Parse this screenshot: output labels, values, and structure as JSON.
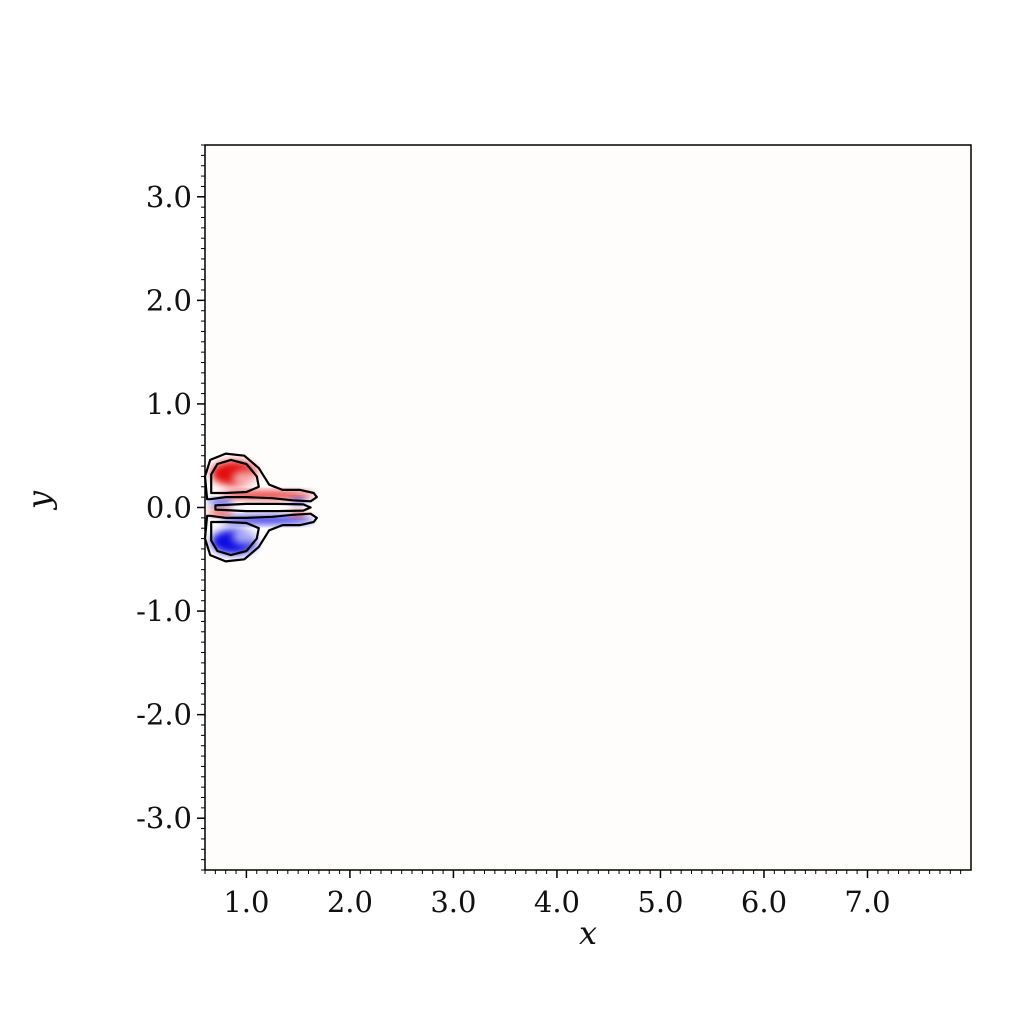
{
  "chart_data": {
    "type": "heatmap",
    "title": "",
    "xlabel": "x",
    "ylabel": "y",
    "xlim": [
      0.6,
      8.0
    ],
    "ylim": [
      -3.5,
      3.5
    ],
    "x_ticks": [
      1.0,
      2.0,
      3.0,
      4.0,
      5.0,
      6.0,
      7.0
    ],
    "x_tick_labels": [
      "1.0",
      "2.0",
      "3.0",
      "4.0",
      "5.0",
      "6.0",
      "7.0"
    ],
    "y_ticks": [
      3.0,
      2.0,
      1.0,
      0.0,
      -1.0,
      -2.0,
      -3.0
    ],
    "y_tick_labels": [
      "3.0",
      "2.0",
      "1.0",
      "0.0",
      "-1.0",
      "-2.0",
      "-3.0"
    ],
    "minor_ticks_per_interval": 9,
    "grid": false,
    "colormap": {
      "positive": "#e00000",
      "zero": "#ffffff",
      "negative": "#0000e0"
    },
    "contour_color": "#000000",
    "features": [
      {
        "kind": "vortex",
        "sign": 1,
        "center": [
          0.88,
          0.33
        ],
        "rx": 0.22,
        "ry": 0.12,
        "peak": 0.95
      },
      {
        "kind": "vortex",
        "sign": 1,
        "center": [
          1.0,
          0.28
        ],
        "rx": 0.14,
        "ry": 0.08,
        "peak": -0.25
      },
      {
        "kind": "vortex",
        "sign": -1,
        "center": [
          0.88,
          -0.33
        ],
        "rx": 0.22,
        "ry": 0.12,
        "peak": 0.95
      },
      {
        "kind": "vortex",
        "sign": -1,
        "center": [
          1.0,
          -0.28
        ],
        "rx": 0.14,
        "ry": 0.08,
        "peak": -0.25
      },
      {
        "kind": "sheet",
        "sign": 1,
        "center": [
          1.2,
          0.12
        ],
        "rx": 0.45,
        "ry": 0.035,
        "peak": 0.9
      },
      {
        "kind": "sheet",
        "sign": -1,
        "center": [
          1.2,
          -0.12
        ],
        "rx": 0.45,
        "ry": 0.035,
        "peak": 0.9
      },
      {
        "kind": "sheet",
        "sign": -1,
        "center": [
          0.75,
          0.05
        ],
        "rx": 0.12,
        "ry": 0.03,
        "peak": 0.8
      },
      {
        "kind": "sheet",
        "sign": 1,
        "center": [
          0.75,
          -0.05
        ],
        "rx": 0.12,
        "ry": 0.03,
        "peak": 0.8
      },
      {
        "kind": "sheet",
        "sign": -1,
        "center": [
          1.5,
          0.06
        ],
        "rx": 0.08,
        "ry": 0.03,
        "peak": 0.7
      },
      {
        "kind": "sheet",
        "sign": 1,
        "center": [
          1.5,
          -0.06
        ],
        "rx": 0.08,
        "ry": 0.03,
        "peak": 0.7
      }
    ],
    "contours": [
      {
        "points": [
          [
            0.62,
            0.08
          ],
          [
            0.6,
            0.3
          ],
          [
            0.65,
            0.46
          ],
          [
            0.8,
            0.52
          ],
          [
            0.98,
            0.5
          ],
          [
            1.12,
            0.38
          ],
          [
            1.22,
            0.22
          ],
          [
            1.35,
            0.17
          ],
          [
            1.52,
            0.17
          ],
          [
            1.65,
            0.14
          ],
          [
            1.68,
            0.1
          ],
          [
            1.62,
            0.06
          ],
          [
            1.45,
            0.07
          ],
          [
            1.25,
            0.09
          ],
          [
            1.0,
            0.1
          ],
          [
            0.8,
            0.1
          ],
          [
            0.65,
            0.08
          ]
        ]
      },
      {
        "points": [
          [
            0.62,
            -0.08
          ],
          [
            0.6,
            -0.3
          ],
          [
            0.65,
            -0.46
          ],
          [
            0.8,
            -0.52
          ],
          [
            0.98,
            -0.5
          ],
          [
            1.12,
            -0.38
          ],
          [
            1.22,
            -0.22
          ],
          [
            1.35,
            -0.17
          ],
          [
            1.52,
            -0.17
          ],
          [
            1.65,
            -0.14
          ],
          [
            1.68,
            -0.1
          ],
          [
            1.62,
            -0.06
          ],
          [
            1.45,
            -0.07
          ],
          [
            1.25,
            -0.09
          ],
          [
            1.0,
            -0.1
          ],
          [
            0.8,
            -0.1
          ],
          [
            0.65,
            -0.08
          ]
        ]
      },
      {
        "points": [
          [
            0.66,
            0.14
          ],
          [
            0.66,
            0.32
          ],
          [
            0.72,
            0.42
          ],
          [
            0.85,
            0.46
          ],
          [
            1.0,
            0.42
          ],
          [
            1.1,
            0.3
          ],
          [
            1.12,
            0.2
          ],
          [
            1.0,
            0.15
          ],
          [
            0.8,
            0.14
          ],
          [
            0.66,
            0.14
          ]
        ]
      },
      {
        "points": [
          [
            0.66,
            -0.14
          ],
          [
            0.66,
            -0.32
          ],
          [
            0.72,
            -0.42
          ],
          [
            0.85,
            -0.46
          ],
          [
            1.0,
            -0.42
          ],
          [
            1.1,
            -0.3
          ],
          [
            1.12,
            -0.2
          ],
          [
            1.0,
            -0.15
          ],
          [
            0.8,
            -0.14
          ],
          [
            0.66,
            -0.14
          ]
        ]
      },
      {
        "points": [
          [
            0.7,
            0.02
          ],
          [
            1.0,
            0.035
          ],
          [
            1.3,
            0.035
          ],
          [
            1.55,
            0.03
          ],
          [
            1.62,
            0.0
          ],
          [
            1.55,
            -0.03
          ],
          [
            1.3,
            -0.035
          ],
          [
            1.0,
            -0.035
          ],
          [
            0.7,
            -0.02
          ],
          [
            0.7,
            0.02
          ]
        ]
      }
    ]
  }
}
